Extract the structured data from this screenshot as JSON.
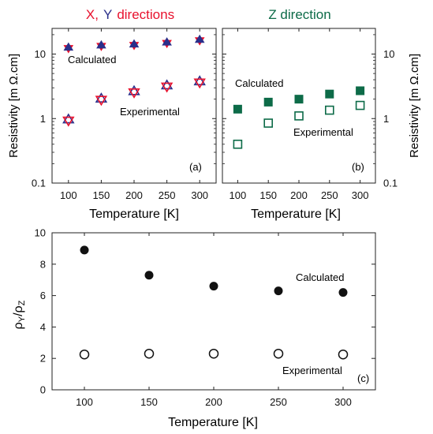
{
  "colors": {
    "axis": "#222222",
    "x_title": "#e8112d",
    "y_title": "#2a2f8a",
    "z_title": "#0d6b48",
    "tri_up_fill": "#2a2f8a",
    "tri_down": "#e8112d",
    "z_marker": "#0d6b48",
    "c_marker": "#111111"
  },
  "panel_a": {
    "title_x": "X,",
    "title_y": "Y",
    "title_rest": "directions",
    "ylabel": "Resistivity [m  Ω.cm]",
    "xlabel": "Temperature  [K]",
    "tag": "(a)",
    "annot_calc": "Calculated",
    "annot_exp": "Experimental"
  },
  "panel_b": {
    "title": "Z direction",
    "ylabel": "Resistivity [m  Ω.cm]",
    "xlabel": "Temperature  [K]",
    "tag": "(b)",
    "annot_calc": "Calculated",
    "annot_exp": "Experimental"
  },
  "panel_c": {
    "xlabel": "Temperature  [K]",
    "tag": "(c)",
    "annot_calc": "Calculated",
    "annot_exp": "Experimental"
  },
  "chart_data": [
    {
      "id": "a",
      "type": "scatter",
      "title": "X, Y directions",
      "xlabel": "Temperature [K]",
      "ylabel": "Resistivity [m Ω.cm]",
      "yscale": "log",
      "x": [
        100,
        150,
        200,
        250,
        300
      ],
      "xlim": [
        75,
        325
      ],
      "ylim": [
        0.1,
        25
      ],
      "xticks": [
        "100",
        "150",
        "200",
        "250",
        "300"
      ],
      "yticks": [
        {
          "value": 0.1,
          "label": "0.1"
        },
        {
          "value": 1,
          "label": "1"
        },
        {
          "value": 10,
          "label": "10"
        }
      ],
      "series": [
        {
          "name": "Calculated",
          "marker": "star-filled",
          "values": [
            12.5,
            13.5,
            14.0,
            15.0,
            16.5
          ]
        },
        {
          "name": "Experimental",
          "marker": "star-open",
          "values": [
            0.95,
            2.0,
            2.6,
            3.2,
            3.7
          ]
        }
      ]
    },
    {
      "id": "b",
      "type": "scatter",
      "title": "Z direction",
      "xlabel": "Temperature [K]",
      "ylabel": "Resistivity [m Ω.cm]",
      "yscale": "log",
      "x": [
        100,
        150,
        200,
        250,
        300
      ],
      "xlim": [
        75,
        325
      ],
      "ylim": [
        0.1,
        25
      ],
      "xticks": [
        "100",
        "150",
        "200",
        "250",
        "300"
      ],
      "yticks": [
        {
          "value": 0.1,
          "label": "0.1"
        },
        {
          "value": 1,
          "label": "1"
        },
        {
          "value": 10,
          "label": "10"
        }
      ],
      "series": [
        {
          "name": "Calculated",
          "marker": "square-filled",
          "values": [
            1.4,
            1.8,
            2.0,
            2.4,
            2.7
          ]
        },
        {
          "name": "Experimental",
          "marker": "square-open",
          "values": [
            0.4,
            0.85,
            1.1,
            1.35,
            1.6
          ]
        }
      ]
    },
    {
      "id": "c",
      "type": "scatter",
      "title": "",
      "xlabel": "Temperature [K]",
      "ylabel": "ρY/ρZ",
      "yscale": "linear",
      "x": [
        100,
        150,
        200,
        250,
        300
      ],
      "xlim": [
        75,
        325
      ],
      "ylim": [
        0,
        10
      ],
      "xticks": [
        "100",
        "150",
        "200",
        "250",
        "300"
      ],
      "yticks": [
        {
          "value": 0,
          "label": "0"
        },
        {
          "value": 2,
          "label": "2"
        },
        {
          "value": 4,
          "label": "4"
        },
        {
          "value": 6,
          "label": "6"
        },
        {
          "value": 8,
          "label": "8"
        },
        {
          "value": 10,
          "label": "10"
        }
      ],
      "series": [
        {
          "name": "Calculated",
          "marker": "circle-filled",
          "values": [
            8.9,
            7.3,
            6.6,
            6.3,
            6.2
          ]
        },
        {
          "name": "Experimental",
          "marker": "circle-open",
          "values": [
            2.25,
            2.3,
            2.3,
            2.3,
            2.25
          ]
        }
      ]
    }
  ]
}
